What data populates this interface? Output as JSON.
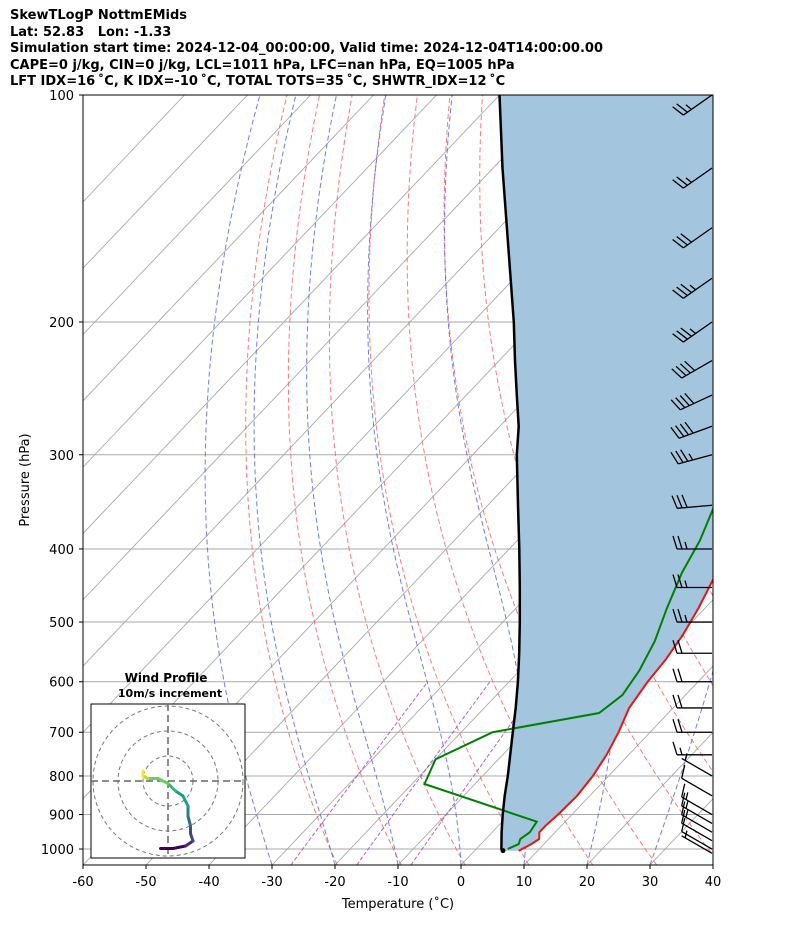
{
  "header": {
    "line1": "SkewTLogP NottmEMids",
    "line2": "Lat: 52.83   Lon: -1.33",
    "line3": "Simulation start time: 2024-12-04_00:00:00, Valid time: 2024-12-04T14:00:00.00",
    "line4": "CAPE=0 j/kg, CIN=0 j/kg, LCL=1011 hPa, LFC=nan hPa, EQ=1005 hPa",
    "line5": "LFT IDX=16 ˚C, K IDX=-10 ˚C, TOTAL TOTS=35 ˚C, SHWTR_IDX=12 ˚C"
  },
  "chart_data": {
    "type": "skewt",
    "xlabel": "Temperature (˚C)",
    "ylabel": "Pressure (hPa)",
    "xlim": [
      -60,
      40
    ],
    "ylim": [
      1050,
      100
    ],
    "log_y": true,
    "grid": true,
    "x_ticks": [
      -60,
      -50,
      -40,
      -30,
      -20,
      -10,
      0,
      10,
      20,
      30,
      40
    ],
    "y_ticks": [
      100,
      200,
      300,
      400,
      500,
      600,
      700,
      800,
      900,
      1000
    ],
    "colors": {
      "temperature": "#ee1111",
      "dewpoint": "#008000",
      "parcel": "#000000",
      "cin_fill": "#a3c6de",
      "dry_adiabat": "#ff6060",
      "moist_adiabat": "#5566ee",
      "mixing_ratio": "#aa33cc",
      "isotherm": "#aaaaaa"
    },
    "series": [
      {
        "role": "temperature",
        "points": [
          [
            7,
            1005
          ],
          [
            8,
            985
          ],
          [
            8.5,
            970
          ],
          [
            7.5,
            950
          ],
          [
            7.5,
            930
          ],
          [
            7.8,
            900
          ],
          [
            8,
            850
          ],
          [
            7.5,
            800
          ],
          [
            6.5,
            750
          ],
          [
            5,
            700
          ],
          [
            3,
            650
          ],
          [
            2,
            600
          ],
          [
            1.5,
            560
          ],
          [
            0.5,
            520
          ],
          [
            -1,
            480
          ],
          [
            -3,
            440
          ],
          [
            -5,
            400
          ],
          [
            -7,
            360
          ],
          [
            -9,
            320
          ],
          [
            -11,
            290
          ],
          [
            -14,
            260
          ],
          [
            -17,
            235
          ],
          [
            -19,
            220
          ],
          [
            -19,
            210
          ],
          [
            -17,
            195
          ],
          [
            -15,
            180
          ],
          [
            -13,
            168
          ],
          [
            -11,
            160
          ],
          [
            -5,
            145
          ],
          [
            -2,
            135
          ],
          [
            -1,
            125
          ],
          [
            0,
            115
          ],
          [
            1,
            108
          ],
          [
            2,
            100
          ]
        ]
      },
      {
        "role": "dewpoint",
        "points": [
          [
            5,
            1000
          ],
          [
            6,
            985
          ],
          [
            5.5,
            970
          ],
          [
            6,
            950
          ],
          [
            5.5,
            920
          ],
          [
            -18,
            820
          ],
          [
            -20,
            760
          ],
          [
            -15,
            700
          ],
          [
            -1,
            660
          ],
          [
            0,
            625
          ],
          [
            -1,
            580
          ],
          [
            -3,
            530
          ],
          [
            -6,
            480
          ],
          [
            -9,
            430
          ],
          [
            -11,
            390
          ],
          [
            -14,
            350
          ],
          [
            -16,
            310
          ],
          [
            -18,
            290
          ],
          [
            -21,
            270
          ],
          [
            -24,
            255
          ],
          [
            -27,
            240
          ],
          [
            -29,
            225
          ],
          [
            -30,
            210
          ],
          [
            -29,
            195
          ],
          [
            -28,
            180
          ],
          [
            -28,
            170
          ],
          [
            -30,
            160
          ],
          [
            -31,
            150
          ],
          [
            -30,
            140
          ],
          [
            -27,
            130
          ],
          [
            -23,
            120
          ],
          [
            -19,
            110
          ],
          [
            -17,
            100
          ]
        ]
      },
      {
        "role": "parcel",
        "points": [
          [
            4.5,
            1005
          ],
          [
            4,
            1000
          ],
          [
            1.5,
            950
          ],
          [
            -1,
            900
          ],
          [
            -3.5,
            850
          ],
          [
            -6,
            800
          ],
          [
            -8.8,
            750
          ],
          [
            -11.8,
            700
          ],
          [
            -15,
            650
          ],
          [
            -18.6,
            600
          ],
          [
            -22.7,
            550
          ],
          [
            -27.3,
            500
          ],
          [
            -32.5,
            450
          ],
          [
            -38.4,
            400
          ],
          [
            -45.2,
            350
          ],
          [
            -53,
            300
          ],
          [
            -57,
            275
          ],
          [
            -62,
            250
          ],
          [
            -67.5,
            225
          ],
          [
            -73.5,
            200
          ],
          [
            -80.6,
            175
          ],
          [
            -88.8,
            150
          ],
          [
            -98.5,
            125
          ],
          [
            -110,
            100
          ]
        ]
      }
    ],
    "wind_barbs": [
      {
        "p": 1013,
        "speed_kt": 5,
        "dir": 300
      },
      {
        "p": 1000,
        "speed_kt": 10,
        "dir": 300
      },
      {
        "p": 975,
        "speed_kt": 10,
        "dir": 300
      },
      {
        "p": 950,
        "speed_kt": 15,
        "dir": 300
      },
      {
        "p": 925,
        "speed_kt": 15,
        "dir": 300
      },
      {
        "p": 900,
        "speed_kt": 15,
        "dir": 300
      },
      {
        "p": 850,
        "speed_kt": 10,
        "dir": 300
      },
      {
        "p": 800,
        "speed_kt": 5,
        "dir": 300
      },
      {
        "p": 750,
        "speed_kt": 15,
        "dir": 270
      },
      {
        "p": 700,
        "speed_kt": 20,
        "dir": 270
      },
      {
        "p": 650,
        "speed_kt": 20,
        "dir": 270
      },
      {
        "p": 600,
        "speed_kt": 20,
        "dir": 270
      },
      {
        "p": 550,
        "speed_kt": 20,
        "dir": 270
      },
      {
        "p": 500,
        "speed_kt": 25,
        "dir": 270
      },
      {
        "p": 450,
        "speed_kt": 25,
        "dir": 270
      },
      {
        "p": 400,
        "speed_kt": 25,
        "dir": 270
      },
      {
        "p": 350,
        "speed_kt": 30,
        "dir": 265
      },
      {
        "p": 300,
        "speed_kt": 35,
        "dir": 255
      },
      {
        "p": 275,
        "speed_kt": 40,
        "dir": 250
      },
      {
        "p": 250,
        "speed_kt": 40,
        "dir": 245
      },
      {
        "p": 225,
        "speed_kt": 40,
        "dir": 240
      },
      {
        "p": 200,
        "speed_kt": 35,
        "dir": 235
      },
      {
        "p": 175,
        "speed_kt": 35,
        "dir": 235
      },
      {
        "p": 150,
        "speed_kt": 30,
        "dir": 235
      },
      {
        "p": 125,
        "speed_kt": 25,
        "dir": 235
      },
      {
        "p": 100,
        "speed_kt": 25,
        "dir": 235
      }
    ],
    "hodograph": {
      "title": "Wind Profile",
      "subtitle": "10m/s increment",
      "ring_step_ms": 10,
      "rings": 3,
      "points": [
        [
          -3,
          -27
        ],
        [
          2,
          -27
        ],
        [
          7,
          -26
        ],
        [
          10,
          -24
        ],
        [
          9,
          -21
        ],
        [
          9,
          -18
        ],
        [
          8,
          -14
        ],
        [
          8,
          -10
        ],
        [
          6,
          -6
        ],
        [
          3,
          -4
        ],
        [
          0,
          -1
        ],
        [
          -4,
          1
        ],
        [
          -8,
          1
        ],
        [
          -10,
          2
        ],
        [
          -10,
          4
        ]
      ]
    }
  }
}
